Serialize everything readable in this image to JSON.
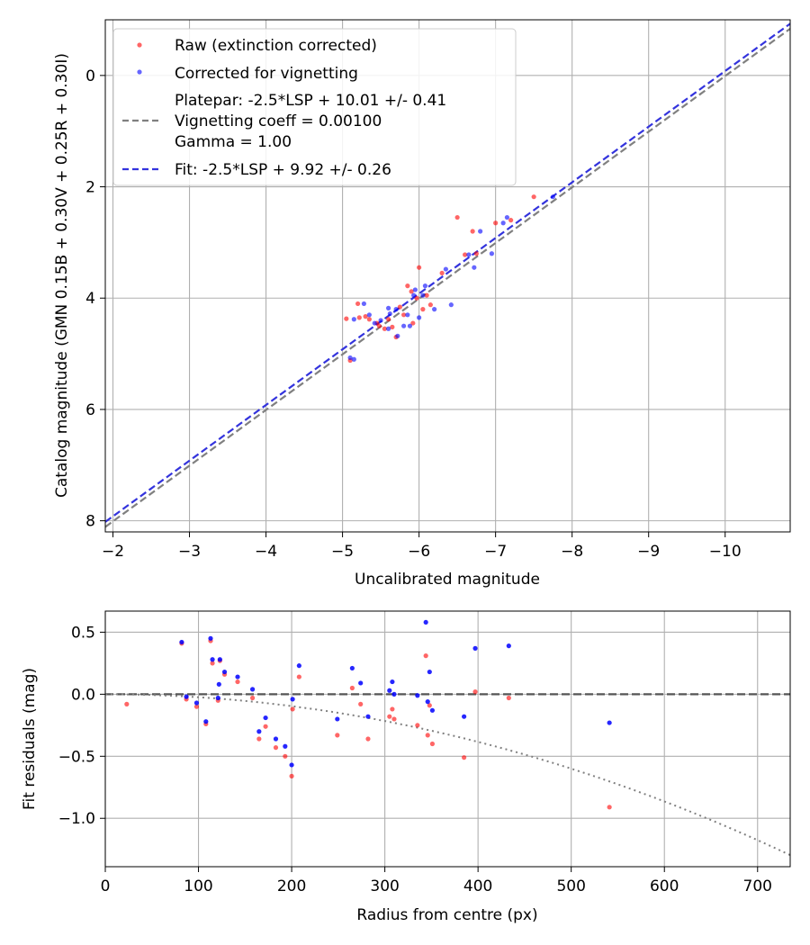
{
  "chart_data": [
    {
      "type": "scatter",
      "xlabel": "Uncalibrated magnitude",
      "ylabel": "Catalog magnitude (GMN 0.15B + 0.30V + 0.25R + 0.30I)",
      "xlim": [
        -1.9,
        -10.85
      ],
      "ylim": [
        8.2,
        -1.0
      ],
      "grid": true,
      "x_ticks": [
        -2,
        -3,
        -4,
        -5,
        -6,
        -7,
        -8,
        -9,
        -10
      ],
      "x_tick_labels": [
        "−2",
        "−3",
        "−4",
        "−5",
        "−6",
        "−7",
        "−8",
        "−9",
        "−10"
      ],
      "y_ticks": [
        0,
        2,
        4,
        6,
        8
      ],
      "y_tick_labels": [
        "0",
        "2",
        "4",
        "6",
        "8"
      ],
      "legend_position": "top-left",
      "legend": [
        {
          "key": "raw",
          "label": "Raw (extinction corrected)"
        },
        {
          "key": "vig",
          "label": "Corrected for vignetting"
        },
        {
          "key": "platepar",
          "label_lines": [
            "Platepar: -2.5*LSP + 10.01 +/- 0.41",
            "Vignetting coeff = 0.00100",
            "Gamma = 1.00"
          ]
        },
        {
          "key": "fit",
          "label": "Fit: -2.5*LSP + 9.92 +/- 0.26"
        }
      ],
      "colors": {
        "raw": "#ff0000",
        "vig": "#0000ff",
        "platepar": "#808080",
        "fit": "#3333dd"
      },
      "lines": [
        {
          "name": "Platepar",
          "slope": 1,
          "intercept": 10.01,
          "style": "dashed",
          "color": "#808080"
        },
        {
          "name": "Fit",
          "slope": 1,
          "intercept": 9.92,
          "style": "dashed",
          "color": "#3333dd"
        }
      ],
      "series": [
        {
          "name": "Raw (extinction corrected)",
          "color": "#ff0000",
          "points": [
            [
              -5.05,
              4.37
            ],
            [
              -5.1,
              5.12
            ],
            [
              -5.2,
              4.1
            ],
            [
              -5.22,
              4.35
            ],
            [
              -5.3,
              4.33
            ],
            [
              -5.35,
              4.38
            ],
            [
              -5.45,
              4.45
            ],
            [
              -5.48,
              4.5
            ],
            [
              -5.55,
              4.55
            ],
            [
              -5.6,
              4.38
            ],
            [
              -5.65,
              4.52
            ],
            [
              -5.7,
              4.7
            ],
            [
              -5.75,
              4.16
            ],
            [
              -5.8,
              4.3
            ],
            [
              -5.85,
              3.78
            ],
            [
              -5.9,
              3.88
            ],
            [
              -5.92,
              4.45
            ],
            [
              -5.97,
              4.0
            ],
            [
              -6.0,
              3.45
            ],
            [
              -6.05,
              4.2
            ],
            [
              -6.1,
              3.95
            ],
            [
              -6.15,
              4.12
            ],
            [
              -6.3,
              3.55
            ],
            [
              -6.5,
              2.55
            ],
            [
              -6.6,
              3.22
            ],
            [
              -6.7,
              2.8
            ],
            [
              -6.75,
              3.2
            ],
            [
              -7.0,
              2.65
            ],
            [
              -7.2,
              2.6
            ],
            [
              -7.5,
              2.18
            ]
          ]
        },
        {
          "name": "Corrected for vignetting",
          "color": "#0000ff",
          "points": [
            [
              -5.1,
              5.07
            ],
            [
              -5.15,
              5.1
            ],
            [
              -5.15,
              4.38
            ],
            [
              -5.28,
              4.1
            ],
            [
              -5.35,
              4.3
            ],
            [
              -5.42,
              4.45
            ],
            [
              -5.5,
              4.4
            ],
            [
              -5.6,
              4.18
            ],
            [
              -5.6,
              4.55
            ],
            [
              -5.62,
              4.28
            ],
            [
              -5.7,
              4.2
            ],
            [
              -5.72,
              4.68
            ],
            [
              -5.8,
              4.5
            ],
            [
              -5.85,
              4.3
            ],
            [
              -5.88,
              4.5
            ],
            [
              -5.93,
              3.95
            ],
            [
              -5.95,
              3.85
            ],
            [
              -6.0,
              4.35
            ],
            [
              -6.05,
              3.95
            ],
            [
              -6.08,
              3.78
            ],
            [
              -6.2,
              4.2
            ],
            [
              -6.35,
              3.48
            ],
            [
              -6.42,
              4.12
            ],
            [
              -6.65,
              3.22
            ],
            [
              -6.72,
              3.45
            ],
            [
              -6.8,
              2.8
            ],
            [
              -6.95,
              3.2
            ],
            [
              -7.1,
              2.65
            ],
            [
              -7.15,
              2.55
            ],
            [
              -7.75,
              2.18
            ]
          ]
        }
      ]
    },
    {
      "type": "scatter",
      "xlabel": "Radius from centre (px)",
      "ylabel": "Fit residuals (mag)",
      "xlim": [
        0,
        735
      ],
      "ylim": [
        -1.39,
        0.67
      ],
      "grid": true,
      "x_ticks": [
        0,
        100,
        200,
        300,
        400,
        500,
        600,
        700
      ],
      "x_tick_labels": [
        "0",
        "100",
        "200",
        "300",
        "400",
        "500",
        "600",
        "700"
      ],
      "y_ticks": [
        0.5,
        0.0,
        -0.5,
        -1.0
      ],
      "y_tick_labels": [
        "0.5",
        "0.0",
        "−0.5",
        "−1.0"
      ],
      "lines": [
        {
          "name": "zero",
          "type": "horizontal",
          "y": 0,
          "style": "dashed",
          "color": "#555555"
        },
        {
          "name": "vignetting",
          "type": "quadratic",
          "coeff": -2.4e-06,
          "style": "dotted",
          "color": "#808080"
        }
      ],
      "series": [
        {
          "name": "Raw",
          "color": "#ff0000",
          "points": [
            [
              23,
              -0.08
            ],
            [
              82,
              0.41
            ],
            [
              87,
              -0.04
            ],
            [
              98,
              -0.1
            ],
            [
              108,
              -0.24
            ],
            [
              113,
              0.43
            ],
            [
              115,
              0.25
            ],
            [
              121,
              -0.05
            ],
            [
              123,
              0.27
            ],
            [
              128,
              0.16
            ],
            [
              142,
              0.1
            ],
            [
              158,
              -0.03
            ],
            [
              165,
              -0.36
            ],
            [
              172,
              -0.26
            ],
            [
              183,
              -0.43
            ],
            [
              193,
              -0.5
            ],
            [
              200,
              -0.66
            ],
            [
              201,
              -0.12
            ],
            [
              208,
              0.14
            ],
            [
              249,
              -0.33
            ],
            [
              265,
              0.05
            ],
            [
              274,
              -0.08
            ],
            [
              282,
              -0.36
            ],
            [
              305,
              -0.18
            ],
            [
              308,
              -0.12
            ],
            [
              310,
              -0.2
            ],
            [
              335,
              -0.25
            ],
            [
              344,
              0.31
            ],
            [
              346,
              -0.33
            ],
            [
              348,
              -0.09
            ],
            [
              351,
              -0.4
            ],
            [
              385,
              -0.51
            ],
            [
              397,
              0.02
            ],
            [
              433,
              -0.03
            ],
            [
              541,
              -0.91
            ]
          ]
        },
        {
          "name": "Corrected",
          "color": "#0000ff",
          "points": [
            [
              82,
              0.42
            ],
            [
              87,
              -0.02
            ],
            [
              98,
              -0.07
            ],
            [
              108,
              -0.22
            ],
            [
              113,
              0.45
            ],
            [
              115,
              0.28
            ],
            [
              121,
              -0.03
            ],
            [
              123,
              0.28
            ],
            [
              122,
              0.08
            ],
            [
              128,
              0.18
            ],
            [
              142,
              0.14
            ],
            [
              158,
              0.04
            ],
            [
              165,
              -0.3
            ],
            [
              172,
              -0.19
            ],
            [
              183,
              -0.36
            ],
            [
              193,
              -0.42
            ],
            [
              200,
              -0.57
            ],
            [
              201,
              -0.04
            ],
            [
              208,
              0.23
            ],
            [
              249,
              -0.2
            ],
            [
              265,
              0.21
            ],
            [
              274,
              0.09
            ],
            [
              282,
              -0.18
            ],
            [
              305,
              0.03
            ],
            [
              308,
              0.1
            ],
            [
              310,
              0.0
            ],
            [
              335,
              -0.01
            ],
            [
              344,
              0.58
            ],
            [
              346,
              -0.06
            ],
            [
              348,
              0.18
            ],
            [
              351,
              -0.13
            ],
            [
              385,
              -0.18
            ],
            [
              397,
              0.37
            ],
            [
              433,
              0.39
            ],
            [
              541,
              -0.23
            ]
          ]
        }
      ]
    }
  ]
}
